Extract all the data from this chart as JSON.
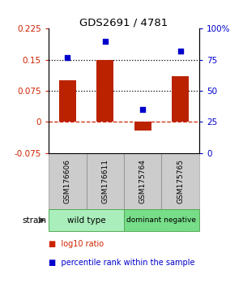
{
  "title": "GDS2691 / 4781",
  "samples": [
    "GSM176606",
    "GSM176611",
    "GSM175764",
    "GSM175765"
  ],
  "log10_ratio": [
    0.1,
    0.15,
    -0.02,
    0.11
  ],
  "percentile_rank": [
    77,
    90,
    35,
    82
  ],
  "left_ylim": [
    -0.075,
    0.225
  ],
  "left_yticks": [
    -0.075,
    0,
    0.075,
    0.15,
    0.225
  ],
  "right_ylim": [
    0,
    100
  ],
  "right_yticks": [
    0,
    25,
    50,
    75,
    100
  ],
  "right_yticklabels": [
    "0",
    "25",
    "50",
    "75",
    "100%"
  ],
  "hlines": [
    0.075,
    0.15
  ],
  "bar_color": "#bb2200",
  "dot_color": "#0000cc",
  "zero_line_color": "#cc2200",
  "group_colors": [
    "#aaeebb",
    "#77dd88"
  ],
  "group_labels": [
    "wild type",
    "dominant negative"
  ],
  "sample_box_color": "#cccccc",
  "strain_label": "strain",
  "legend_items": [
    {
      "color": "#cc2200",
      "label": "log10 ratio"
    },
    {
      "color": "#0000cc",
      "label": "percentile rank within the sample"
    }
  ]
}
